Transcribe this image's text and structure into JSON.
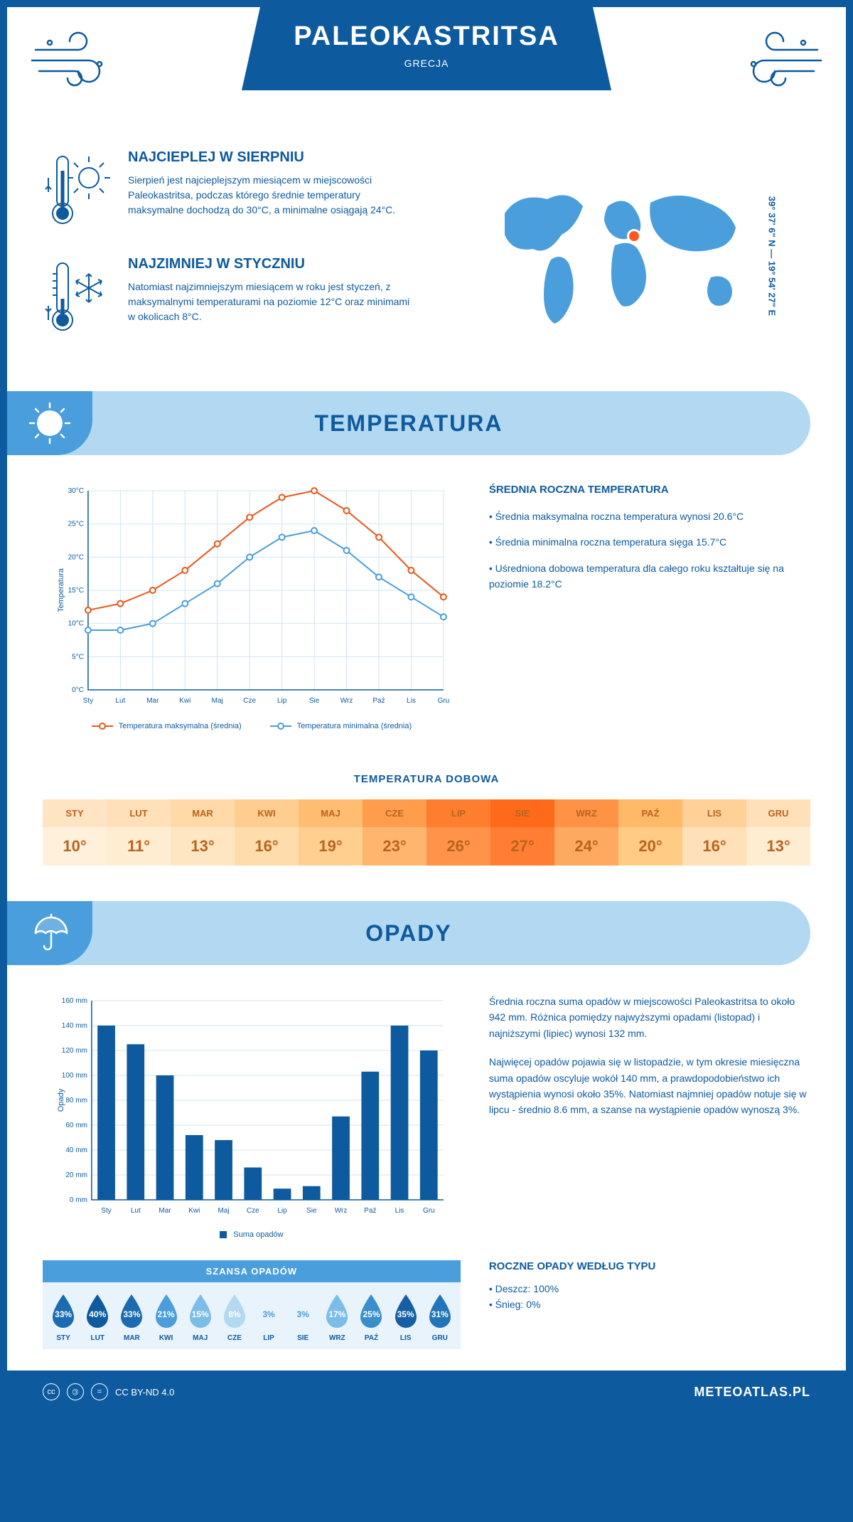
{
  "header": {
    "title": "PALEOKASTRITSA",
    "subtitle": "GRECJA"
  },
  "coords": "39° 37' 6\" N — 19° 54' 27\" E",
  "intro": {
    "warm": {
      "title": "NAJCIEPLEJ W SIERPNIU",
      "text": "Sierpień jest najcieplejszym miesiącem w miejscowości Paleokastritsa, podczas którego średnie temperatury maksymalne dochodzą do 30°C, a minimalne osiągają 24°C."
    },
    "cold": {
      "title": "NAJZIMNIEJ W STYCZNIU",
      "text": "Natomiast najzimniejszym miesiącem w roku jest styczeń, z maksymalnymi temperaturami na poziomie 12°C oraz minimami w okolicach 8°C."
    }
  },
  "temp_section": {
    "title": "TEMPERATURA",
    "stats_title": "ŚREDNIA ROCZNA TEMPERATURA",
    "stats": [
      "• Średnia maksymalna roczna temperatura wynosi 20.6°C",
      "• Średnia minimalna roczna temperatura sięga 15.7°C",
      "• Uśredniona dobowa temperatura dla całego roku kształtuje się na poziomie 18.2°C"
    ],
    "chart": {
      "type": "line",
      "y_axis_label": "Temperatura",
      "months": [
        "Sty",
        "Lut",
        "Mar",
        "Kwi",
        "Maj",
        "Cze",
        "Lip",
        "Sie",
        "Wrz",
        "Paź",
        "Lis",
        "Gru"
      ],
      "y_ticks": [
        "0°C",
        "5°C",
        "10°C",
        "15°C",
        "20°C",
        "25°C",
        "30°C"
      ],
      "ylim": [
        0,
        30
      ],
      "max_series": {
        "label": "Temperatura maksymalna (średnia)",
        "color": "#e8571b",
        "values": [
          12,
          13,
          15,
          18,
          22,
          26,
          29,
          30,
          27,
          23,
          18,
          14
        ]
      },
      "min_series": {
        "label": "Temperatura minimalna (średnia)",
        "color": "#4a9edb",
        "values": [
          9,
          9,
          10,
          13,
          16,
          20,
          23,
          24,
          21,
          17,
          14,
          11
        ]
      },
      "grid_color": "#d0e4f2",
      "line_width": 2,
      "marker_size": 4
    },
    "daily_title": "TEMPERATURA DOBOWA",
    "daily": {
      "months": [
        "STY",
        "LUT",
        "MAR",
        "KWI",
        "MAJ",
        "CZE",
        "LIP",
        "SIE",
        "WRZ",
        "PAŹ",
        "LIS",
        "GRU"
      ],
      "values": [
        "10°",
        "11°",
        "13°",
        "16°",
        "19°",
        "23°",
        "26°",
        "27°",
        "24°",
        "20°",
        "16°",
        "13°"
      ],
      "head_colors": [
        "#ffe4c4",
        "#ffe0b8",
        "#ffd9a8",
        "#ffcd8f",
        "#ffbd72",
        "#ff9d4d",
        "#ff7d2e",
        "#ff6a1a",
        "#ff9244",
        "#ffb968",
        "#ffd199",
        "#ffe0b8"
      ],
      "val_colors": [
        "#fff0dc",
        "#ffedd2",
        "#ffe6c2",
        "#ffdcab",
        "#ffcf90",
        "#ffb56e",
        "#ff934a",
        "#ff7e33",
        "#ffa960",
        "#ffcb85",
        "#ffe0b8",
        "#ffedd2"
      ]
    }
  },
  "precip_section": {
    "title": "OPADY",
    "text1": "Średnia roczna suma opadów w miejscowości Paleokastritsa to około 942 mm. Różnica pomiędzy najwyższymi opadami (listopad) i najniższymi (lipiec) wynosi 132 mm.",
    "text2": "Najwięcej opadów pojawia się w listopadzie, w tym okresie miesięczna suma opadów oscyluje wokół 140 mm, a prawdopodobieństwo ich wystąpienia wynosi około 35%. Natomiast najmniej opadów notuje się w lipcu - średnio 8.6 mm, a szanse na wystąpienie opadów wynoszą 3%.",
    "chart": {
      "type": "bar",
      "y_axis_label": "Opady",
      "legend": "Suma opadów",
      "months": [
        "Sty",
        "Lut",
        "Mar",
        "Kwi",
        "Maj",
        "Cze",
        "Lip",
        "Sie",
        "Wrz",
        "Paź",
        "Lis",
        "Gru"
      ],
      "y_ticks": [
        "0 mm",
        "20 mm",
        "40 mm",
        "60 mm",
        "80 mm",
        "100 mm",
        "120 mm",
        "140 mm",
        "160 mm"
      ],
      "ylim": [
        0,
        160
      ],
      "values": [
        140,
        125,
        100,
        52,
        48,
        26,
        9,
        11,
        67,
        103,
        140,
        120
      ],
      "bar_color": "#0d5a9e",
      "grid_color": "#d0e4f2"
    },
    "chance": {
      "title": "SZANSA OPADÓW",
      "months": [
        "STY",
        "LUT",
        "MAR",
        "KWI",
        "MAJ",
        "CZE",
        "LIP",
        "SIE",
        "WRZ",
        "PAŹ",
        "LIS",
        "GRU"
      ],
      "values": [
        "33%",
        "40%",
        "33%",
        "21%",
        "15%",
        "8%",
        "3%",
        "3%",
        "17%",
        "25%",
        "35%",
        "31%"
      ],
      "colors": [
        "#1a6bb0",
        "#0d5a9e",
        "#1a6bb0",
        "#4a9edb",
        "#7bbce8",
        "#b3d9f2",
        "#e8f3fb",
        "#e8f3fb",
        "#7bbce8",
        "#3a8ecb",
        "#165fa3",
        "#2275b8"
      ],
      "text_colors": [
        "#fff",
        "#fff",
        "#fff",
        "#fff",
        "#fff",
        "#fff",
        "#4a9edb",
        "#4a9edb",
        "#fff",
        "#fff",
        "#fff",
        "#fff"
      ]
    },
    "by_type": {
      "title": "ROCZNE OPADY WEDŁUG TYPU",
      "items": [
        "• Deszcz: 100%",
        "• Śnieg: 0%"
      ]
    }
  },
  "footer": {
    "license": "CC BY-ND 4.0",
    "site": "METEOATLAS.PL"
  }
}
